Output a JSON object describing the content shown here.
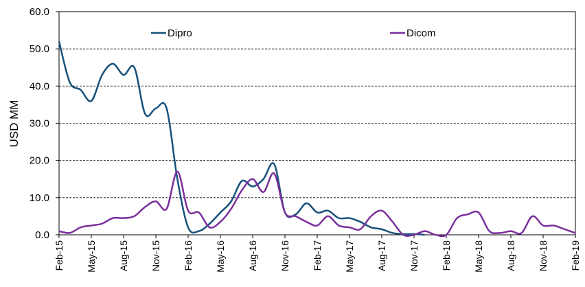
{
  "chart_data": {
    "type": "line",
    "ylabel": "USD MM",
    "categories": [
      "Feb-15",
      null,
      null,
      "May-15",
      null,
      null,
      "Aug-15",
      null,
      null,
      "Nov-15",
      null,
      null,
      "Feb-16",
      null,
      null,
      "May-16",
      null,
      null,
      "Aug-16",
      null,
      null,
      "Nov-16",
      null,
      null,
      "Feb-17",
      null,
      null,
      "May-17",
      null,
      null,
      "Aug-17",
      null,
      null,
      "Nov-17",
      null,
      null,
      "Feb-18",
      null,
      null,
      "May-18",
      null,
      null,
      "Aug-18",
      null,
      null,
      "Nov-18",
      null,
      null,
      "Feb-19"
    ],
    "series": [
      {
        "name": "Dipro",
        "color": "#17527c",
        "values": [
          52,
          41,
          39,
          36,
          43,
          46,
          43,
          45,
          32.5,
          34,
          34,
          15,
          2,
          1,
          3,
          6,
          9,
          14.5,
          13,
          15,
          19,
          6,
          5.5,
          8.5,
          6,
          6.5,
          4.5,
          4.5,
          3.5,
          2,
          1.5,
          0.5,
          0.2,
          0.2,
          0,
          null,
          null,
          null,
          null,
          null,
          null,
          null,
          null,
          null,
          null,
          null,
          null,
          null,
          null
        ]
      },
      {
        "name": "Dicom",
        "color": "#7b2f9c",
        "values": [
          1,
          0.5,
          2,
          2.5,
          3,
          4.5,
          4.5,
          5,
          7.5,
          9,
          7,
          17,
          6.5,
          6,
          2,
          3.5,
          7,
          12,
          15,
          11.5,
          16.5,
          6,
          5,
          3.5,
          2.5,
          5,
          2.5,
          2,
          1.5,
          5,
          6.5,
          3.5,
          0,
          0,
          1,
          0,
          0,
          4.5,
          5.5,
          6,
          1,
          0.5,
          1,
          0.5,
          5,
          2.5,
          2.5,
          1.5,
          0.5
        ]
      }
    ],
    "ylim": [
      0,
      60
    ],
    "yticks": [
      {
        "value": 0,
        "label": "0.0"
      },
      {
        "value": 10,
        "label": "10.0"
      },
      {
        "value": 20,
        "label": "20.0"
      },
      {
        "value": 30,
        "label": "30.0"
      },
      {
        "value": 40,
        "label": "40.0"
      },
      {
        "value": 50,
        "label": "50.0"
      },
      {
        "value": 60,
        "label": "60.0"
      }
    ],
    "grid": true,
    "legend": "top"
  }
}
